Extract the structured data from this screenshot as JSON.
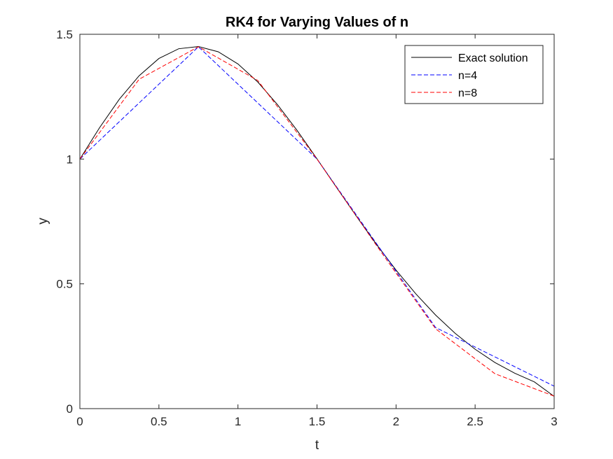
{
  "chart_data": {
    "type": "line",
    "title": "RK4 for Varying Values of n",
    "xlabel": "t",
    "ylabel": "y",
    "xlim": [
      0,
      3
    ],
    "ylim": [
      0,
      1.5
    ],
    "xticks": [
      0,
      0.5,
      1,
      1.5,
      2,
      2.5,
      3
    ],
    "xtick_labels": [
      "0",
      "0.5",
      "1",
      "1.5",
      "2",
      "2.5",
      "3"
    ],
    "yticks": [
      0,
      0.5,
      1,
      1.5
    ],
    "ytick_labels": [
      "0",
      "0.5",
      "1",
      "1.5"
    ],
    "grid": false,
    "legend_position": "top-right",
    "series": [
      {
        "name": "Exact solution",
        "color": "#000000",
        "style": "solid",
        "x": [
          0,
          0.125,
          0.25,
          0.375,
          0.5,
          0.625,
          0.75,
          0.875,
          1.0,
          1.125,
          1.25,
          1.375,
          1.5,
          1.625,
          1.75,
          1.875,
          2.0,
          2.125,
          2.25,
          2.375,
          2.5,
          2.625,
          2.75,
          2.875,
          3.0
        ],
        "y": [
          1.0,
          1.126,
          1.24,
          1.334,
          1.403,
          1.442,
          1.451,
          1.43,
          1.381,
          1.309,
          1.218,
          1.114,
          1.001,
          0.885,
          0.77,
          0.659,
          0.555,
          0.46,
          0.375,
          0.301,
          0.238,
          0.185,
          0.142,
          0.107,
          0.049
        ]
      },
      {
        "name": "n=4",
        "color": "#0000ff",
        "style": "dashed",
        "x": [
          0,
          0.75,
          1.5,
          2.25,
          3.0
        ],
        "y": [
          1.0,
          1.45,
          1.0,
          0.325,
          0.09
        ]
      },
      {
        "name": "n=8",
        "color": "#ff0000",
        "style": "dashed",
        "x": [
          0,
          0.375,
          0.75,
          1.125,
          1.5,
          1.875,
          2.25,
          2.625,
          3.0
        ],
        "y": [
          1.0,
          1.32,
          1.45,
          1.315,
          1.0,
          0.655,
          0.32,
          0.14,
          0.05
        ]
      }
    ]
  }
}
